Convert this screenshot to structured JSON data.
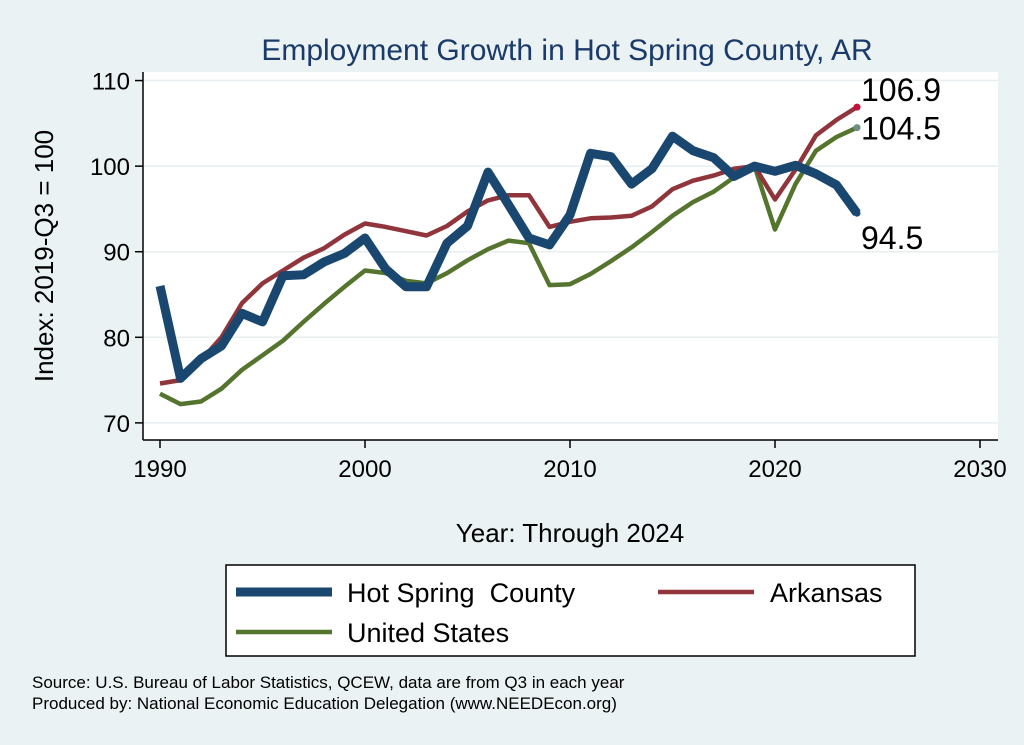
{
  "chart_data": {
    "type": "line",
    "title": "Employment Growth in Hot Spring County, AR",
    "xlabel": "Year: Through 2024",
    "ylabel": "Index: 2019-Q3 = 100",
    "xlim": [
      1990,
      2030
    ],
    "ylim": [
      68,
      111
    ],
    "xticks": [
      1990,
      2000,
      2010,
      2020,
      2030
    ],
    "yticks": [
      70,
      80,
      90,
      100,
      110
    ],
    "grid": true,
    "legend_position": "bottom",
    "x": [
      1990,
      1991,
      1992,
      1993,
      1994,
      1995,
      1996,
      1997,
      1998,
      1999,
      2000,
      2001,
      2002,
      2003,
      2004,
      2005,
      2006,
      2007,
      2008,
      2009,
      2010,
      2011,
      2012,
      2013,
      2014,
      2015,
      2016,
      2017,
      2018,
      2019,
      2020,
      2021,
      2022,
      2023,
      2024
    ],
    "series": [
      {
        "name": "Hot Spring  County",
        "color": "#1a476f",
        "values": [
          86.0,
          75.2,
          77.5,
          79.0,
          82.8,
          81.8,
          87.2,
          87.3,
          88.8,
          89.8,
          91.6,
          88.0,
          85.9,
          85.9,
          91.0,
          93.0,
          99.3,
          95.5,
          91.6,
          90.8,
          94.3,
          101.5,
          101.1,
          97.9,
          99.7,
          103.5,
          101.8,
          101.0,
          98.8,
          100.0,
          99.4,
          100.1,
          99.1,
          97.8,
          94.5
        ],
        "end_label": "94.5"
      },
      {
        "name": "Arkansas",
        "color": "#90353b",
        "values": [
          74.6,
          75.0,
          77.3,
          80.0,
          84.0,
          86.3,
          87.8,
          89.3,
          90.4,
          92.0,
          93.3,
          92.9,
          92.4,
          91.9,
          93.0,
          94.7,
          96.0,
          96.6,
          96.6,
          92.9,
          93.5,
          93.9,
          94.0,
          94.2,
          95.3,
          97.3,
          98.3,
          98.9,
          99.7,
          100.0,
          96.1,
          99.6,
          103.6,
          105.4,
          106.9
        ],
        "end_label": "106.9"
      },
      {
        "name": "United States",
        "color": "#55752f",
        "values": [
          73.4,
          72.2,
          72.5,
          74.0,
          76.2,
          77.9,
          79.6,
          81.8,
          83.9,
          85.9,
          87.8,
          87.5,
          86.6,
          86.3,
          87.5,
          89.0,
          90.3,
          91.3,
          91.0,
          86.1,
          86.2,
          87.4,
          88.9,
          90.5,
          92.3,
          94.2,
          95.8,
          97.0,
          98.7,
          100.0,
          92.6,
          97.9,
          101.8,
          103.4,
          104.5
        ],
        "end_label": "104.5"
      }
    ]
  },
  "footer": {
    "source": "Source: U.S. Bureau of Labor Statistics, QCEW, data are from Q3 in each year",
    "produced": "Produced by: National Economic Education Delegation (www.NEEDEcon.org)"
  }
}
